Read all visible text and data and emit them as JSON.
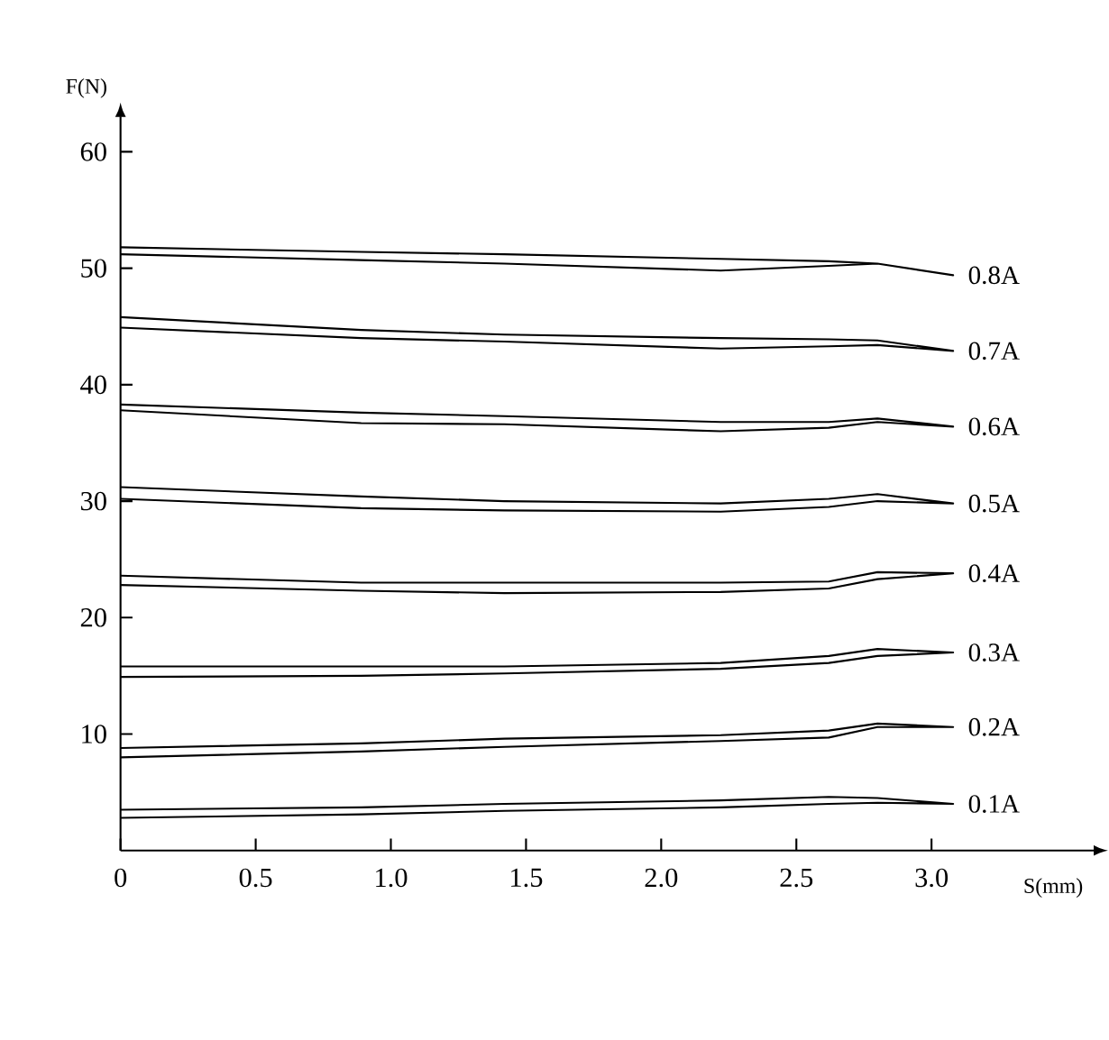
{
  "chart_data": {
    "type": "line",
    "xlabel": "S(mm)",
    "ylabel": "F(N)",
    "xlim": [
      0,
      3.6
    ],
    "ylim": [
      0,
      63
    ],
    "xticks": [
      0,
      0.5,
      {
        "value": 1,
        "label": "1.0"
      },
      1.5,
      {
        "value": 2,
        "label": "2.0"
      },
      2.5,
      {
        "value": 3,
        "label": "3.0"
      }
    ],
    "yticks": [
      10,
      20,
      30,
      40,
      50,
      60
    ],
    "line_style": "solid",
    "series": [
      {
        "name": "0.8A",
        "color": "#000000",
        "x": [
          0,
          0.89,
          1.42,
          2.22,
          2.62,
          2.8,
          3.08,
          2.8,
          2.62,
          2.22,
          1.42,
          0.89,
          0
        ],
        "values": [
          51.2,
          50.7,
          50.4,
          49.8,
          50.2,
          50.4,
          49.4,
          50.4,
          50.6,
          50.8,
          51.2,
          51.4,
          51.8
        ]
      },
      {
        "name": "0.7A",
        "color": "#000000",
        "x": [
          0,
          0.89,
          1.42,
          2.22,
          2.62,
          2.8,
          3.08,
          2.8,
          2.62,
          2.22,
          1.42,
          0.89,
          0
        ],
        "values": [
          44.9,
          44.0,
          43.7,
          43.1,
          43.3,
          43.4,
          42.9,
          43.8,
          43.9,
          44.0,
          44.3,
          44.7,
          45.8
        ]
      },
      {
        "name": "0.6A",
        "color": "#000000",
        "x": [
          0,
          0.89,
          1.42,
          2.22,
          2.62,
          2.8,
          3.08,
          2.8,
          2.62,
          2.22,
          1.42,
          0.89,
          0
        ],
        "values": [
          37.8,
          36.7,
          36.6,
          36.0,
          36.3,
          36.8,
          36.4,
          37.1,
          36.8,
          36.8,
          37.3,
          37.6,
          38.3
        ]
      },
      {
        "name": "0.5A",
        "color": "#000000",
        "x": [
          0,
          0.89,
          1.42,
          2.22,
          2.62,
          2.8,
          3.08,
          2.8,
          2.62,
          2.22,
          1.42,
          0.89,
          0
        ],
        "values": [
          30.2,
          29.4,
          29.2,
          29.1,
          29.5,
          30.0,
          29.8,
          30.6,
          30.2,
          29.8,
          30.0,
          30.4,
          31.2
        ]
      },
      {
        "name": "0.4A",
        "color": "#000000",
        "x": [
          0,
          0.89,
          1.42,
          2.22,
          2.62,
          2.8,
          3.08,
          2.8,
          2.62,
          2.22,
          0.89,
          0
        ],
        "values": [
          22.8,
          22.3,
          22.1,
          22.2,
          22.5,
          23.3,
          23.8,
          23.9,
          23.1,
          23.0,
          23.0,
          23.6
        ]
      },
      {
        "name": "0.3A",
        "color": "#000000",
        "x": [
          0,
          0.89,
          1.42,
          2.22,
          2.62,
          2.8,
          3.08,
          2.8,
          2.62,
          2.22,
          1.42,
          0
        ],
        "values": [
          14.9,
          15.0,
          15.2,
          15.6,
          16.1,
          16.7,
          17.0,
          17.3,
          16.7,
          16.1,
          15.8,
          15.8
        ]
      },
      {
        "name": "0.2A",
        "color": "#000000",
        "x": [
          0,
          0.89,
          1.42,
          2.22,
          2.62,
          2.8,
          3.08,
          2.8,
          2.62,
          2.22,
          1.42,
          0.89,
          0
        ],
        "values": [
          8.0,
          8.5,
          8.9,
          9.4,
          9.7,
          10.6,
          10.6,
          10.9,
          10.3,
          9.9,
          9.6,
          9.2,
          8.8
        ]
      },
      {
        "name": "0.1A",
        "color": "#000000",
        "x": [
          0,
          0.89,
          1.42,
          2.22,
          2.62,
          2.8,
          3.08,
          2.8,
          2.62,
          2.22,
          1.42,
          0.89,
          0
        ],
        "values": [
          2.8,
          3.1,
          3.4,
          3.7,
          4.0,
          4.1,
          4.0,
          4.5,
          4.6,
          4.3,
          4.0,
          3.7,
          3.5
        ]
      }
    ]
  }
}
